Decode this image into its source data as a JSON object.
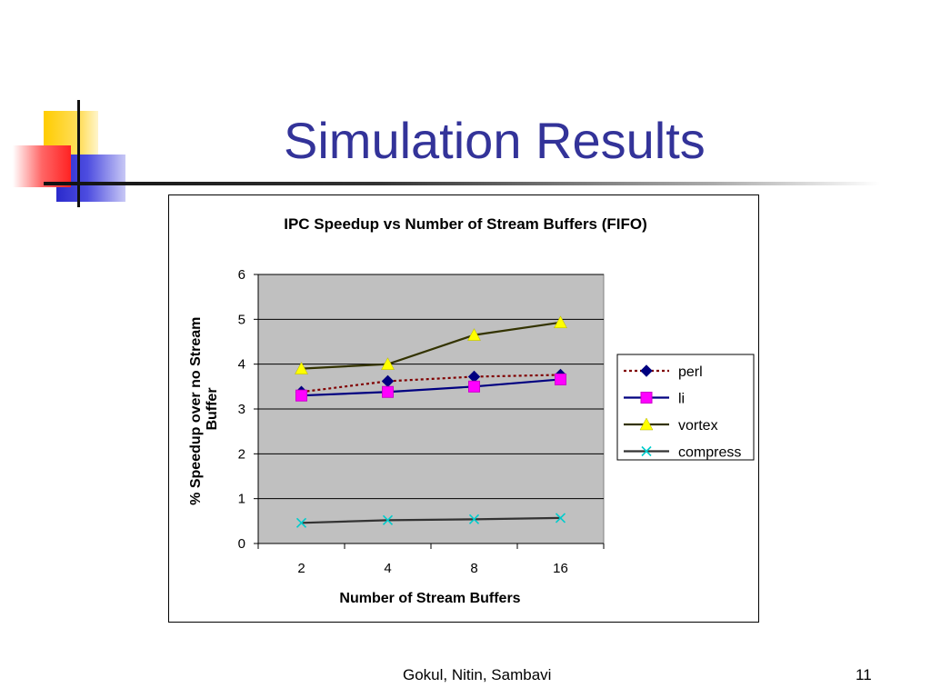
{
  "slide": {
    "title": "Simulation Results",
    "footer_authors": "Gokul, Nitin, Sambavi",
    "page_number": "11"
  },
  "colors": {
    "title": "#333399",
    "plot_background": "#c0c0c0",
    "deco_yellow": "#ffcc00",
    "deco_red": "#ff3333",
    "deco_blue": "#3333cc"
  },
  "chart_data": {
    "type": "line",
    "title": "IPC Speedup vs Number of Stream Buffers (FIFO)",
    "xlabel": "Number of Stream Buffers",
    "ylabel_lines": [
      "% Speedup over no Stream",
      "Buffer"
    ],
    "categories": [
      "2",
      "4",
      "8",
      "16"
    ],
    "ylim": [
      0,
      6
    ],
    "yticks": [
      "0",
      "1",
      "2",
      "3",
      "4",
      "5",
      "6"
    ],
    "grid": true,
    "legend_position": "right",
    "series": [
      {
        "name": "perl",
        "values": [
          3.38,
          3.62,
          3.72,
          3.76
        ],
        "color": "#800000",
        "dash": "dotted",
        "marker": "diamond",
        "marker_color": "#000080"
      },
      {
        "name": "li",
        "values": [
          3.3,
          3.38,
          3.5,
          3.66
        ],
        "color": "#000080",
        "dash": "solid",
        "marker": "square",
        "marker_color": "#ff00ff"
      },
      {
        "name": "vortex",
        "values": [
          3.9,
          4.0,
          4.65,
          4.93
        ],
        "color": "#333300",
        "dash": "solid",
        "marker": "triangle",
        "marker_color": "#ffff00"
      },
      {
        "name": "compress",
        "values": [
          0.46,
          0.52,
          0.54,
          0.57
        ],
        "color": "#333333",
        "dash": "solid",
        "marker": "x",
        "marker_color": "#00cccc"
      }
    ]
  }
}
